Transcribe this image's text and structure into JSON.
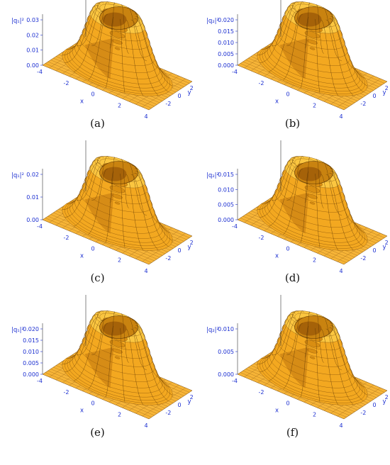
{
  "panels": [
    {
      "caption": "(a)",
      "z_label": "|q₁|²",
      "z_ticks": [
        "0.00",
        "0.01",
        "0.02",
        "0.03"
      ],
      "x_ticks": [
        "-4",
        "-2",
        "0",
        "2",
        "4"
      ],
      "y_ticks": [
        "2",
        "0",
        "-2"
      ],
      "x_label": "x",
      "y_label": "y"
    },
    {
      "caption": "(b)",
      "z_label": "|q₂|²",
      "z_ticks": [
        "0.000",
        "0.005",
        "0.010",
        "0.015",
        "0.020"
      ],
      "x_ticks": [
        "-4",
        "-2",
        "0",
        "2",
        "4"
      ],
      "y_ticks": [
        "2",
        "0",
        "-2"
      ],
      "x_label": "x",
      "y_label": "y"
    },
    {
      "caption": "(c)",
      "z_label": "|q₁|²",
      "z_ticks": [
        "0.00",
        "0.01",
        "0.02"
      ],
      "x_ticks": [
        "-4",
        "-2",
        "0",
        "2",
        "4"
      ],
      "y_ticks": [
        "2",
        "0",
        "-2"
      ],
      "x_label": "x",
      "y_label": "y"
    },
    {
      "caption": "(d)",
      "z_label": "|q₂|²",
      "z_ticks": [
        "0.000",
        "0.005",
        "0.010",
        "0.015"
      ],
      "x_ticks": [
        "-4",
        "-2",
        "0",
        "2",
        "4"
      ],
      "y_ticks": [
        "2",
        "0",
        "-2"
      ],
      "x_label": "x",
      "y_label": "y"
    },
    {
      "caption": "(e)",
      "z_label": "|q₁|²",
      "z_ticks": [
        "0.000",
        "0.005",
        "0.010",
        "0.015",
        "0.020"
      ],
      "x_ticks": [
        "-4",
        "-2",
        "0",
        "2",
        "4"
      ],
      "y_ticks": [
        "2",
        "0",
        "-2"
      ],
      "x_label": "x",
      "y_label": "y"
    },
    {
      "caption": "(f)",
      "z_label": "|q₂|²",
      "z_ticks": [
        "0.000",
        "0.005",
        "0.010"
      ],
      "x_ticks": [
        "-4",
        "-2",
        "0",
        "2",
        "4"
      ],
      "y_ticks": [
        "2",
        "0",
        "-2"
      ],
      "x_label": "x",
      "y_label": "y"
    }
  ],
  "chart_data": [
    {
      "type": "surface",
      "panel": "(a)",
      "quantity": "|q₁|²",
      "x_range": [
        -4,
        4
      ],
      "y_range": [
        -4,
        4
      ],
      "z_range": [
        0,
        0.03
      ],
      "shape": "ring (volcano)"
    },
    {
      "type": "surface",
      "panel": "(b)",
      "quantity": "|q₂|²",
      "x_range": [
        -4,
        4
      ],
      "y_range": [
        -4,
        4
      ],
      "z_range": [
        0,
        0.02
      ],
      "shape": "ring (volcano)"
    },
    {
      "type": "surface",
      "panel": "(c)",
      "quantity": "|q₁|²",
      "x_range": [
        -4,
        4
      ],
      "y_range": [
        -4,
        4
      ],
      "z_range": [
        0,
        0.02
      ],
      "shape": "ring (volcano)"
    },
    {
      "type": "surface",
      "panel": "(d)",
      "quantity": "|q₂|²",
      "x_range": [
        -4,
        4
      ],
      "y_range": [
        -4,
        4
      ],
      "z_range": [
        0,
        0.015
      ],
      "shape": "ring (volcano)"
    },
    {
      "type": "surface",
      "panel": "(e)",
      "quantity": "|q₁|²",
      "x_range": [
        -4,
        4
      ],
      "y_range": [
        -4,
        4
      ],
      "z_range": [
        0,
        0.02
      ],
      "shape": "ring (volcano)"
    },
    {
      "type": "surface",
      "panel": "(f)",
      "quantity": "|q₂|²",
      "x_range": [
        -4,
        4
      ],
      "y_range": [
        -4,
        4
      ],
      "z_range": [
        0,
        0.01
      ],
      "shape": "ring (volcano)"
    }
  ],
  "colors": {
    "surface_light": "#ffd24a",
    "surface_mid": "#f2a21a",
    "surface_dark": "#b86a05",
    "axis_blue": "#1c2fd1",
    "mesh": "#5a3300"
  }
}
